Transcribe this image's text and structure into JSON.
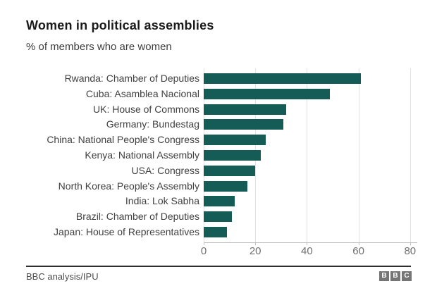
{
  "header": {
    "title": "Women in political assemblies",
    "subtitle": "% of members who are women"
  },
  "chart_data": {
    "type": "bar",
    "orientation": "horizontal",
    "title": "Women in political assemblies",
    "subtitle": "% of members who are women",
    "categories": [
      "Rwanda: Chamber of Deputies",
      "Cuba: Asamblea Nacional",
      "UK: House of Commons",
      "Germany: Bundestag",
      "China: National People's Congress",
      "Kenya: National Assembly",
      "USA: Congress",
      "North Korea: People's Assembly",
      "India: Lok Sabha",
      "Brazil: Chamber of Deputies",
      "Japan: House of Representatives"
    ],
    "values": [
      61,
      49,
      32,
      31,
      24,
      22,
      20,
      17,
      12,
      11,
      9
    ],
    "xlabel": "",
    "ylabel": "",
    "xlim": [
      0,
      80
    ],
    "x_ticks": [
      0,
      20,
      40,
      60,
      80
    ],
    "grid": true,
    "legend": "none",
    "bar_color": "#165c56"
  },
  "footer": {
    "source": "BBC analysis/IPU",
    "logo_letters": [
      "B",
      "B",
      "C"
    ]
  },
  "colors": {
    "bar": "#165c56",
    "label_text": "#404040",
    "tick_text": "#6f6f6f",
    "gridline": "#e2e2e2",
    "axis_line": "#bdbdbd",
    "footer_rule": "#2e2e2e",
    "logo_block": "#757575"
  }
}
